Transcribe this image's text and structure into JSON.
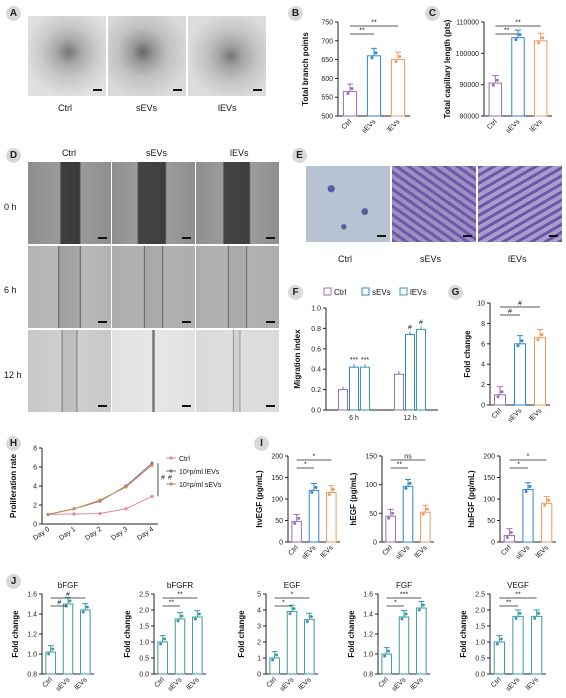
{
  "panels": {
    "A": "A",
    "B": "B",
    "C": "C",
    "D": "D",
    "E": "E",
    "F": "F",
    "G": "G",
    "H": "H",
    "I": "I",
    "J": "J"
  },
  "groups": {
    "ctrl": "Ctrl",
    "sevs": "sEVs",
    "levs": "lEVs"
  },
  "times": {
    "t0": "0 h",
    "t6": "6 h",
    "t12": "12 h"
  },
  "sig": {
    "s1": "*",
    "s2": "**",
    "s3": "***",
    "hash": "#",
    "ns": "ns"
  },
  "colors": {
    "ctrl": "#9b6fb3",
    "sevs": "#2f86d6",
    "levs": "#f09a60",
    "teal": "#3a9aa4",
    "pink": "#e3879a"
  },
  "chart_data": [
    {
      "id": "B",
      "type": "bar",
      "categories": [
        "Ctrl",
        "sEVs",
        "lEVs"
      ],
      "values": [
        565,
        660,
        650
      ],
      "ylabel": "Total branch points",
      "ylim": [
        500,
        750
      ],
      "yticks": [
        500,
        550,
        600,
        650,
        700,
        750
      ]
    },
    {
      "id": "C",
      "type": "bar",
      "categories": [
        "Ctrl",
        "sEVs",
        "lEVs"
      ],
      "values": [
        90500,
        105000,
        104000
      ],
      "ylabel": "Total capillary length (pts)",
      "ylim": [
        80000,
        110000
      ],
      "yticks": [
        80000,
        90000,
        100000,
        110000
      ]
    },
    {
      "id": "F",
      "type": "bar",
      "categories": [
        "6 h",
        "12 h"
      ],
      "series": [
        {
          "name": "Ctrl",
          "values": [
            0.2,
            0.35
          ]
        },
        {
          "name": "sEVs",
          "values": [
            0.42,
            0.74
          ]
        },
        {
          "name": "lEVs",
          "values": [
            0.42,
            0.79
          ]
        }
      ],
      "ylabel": "Migration index",
      "ylim": [
        0,
        1.0
      ],
      "yticks": [
        0,
        0.2,
        0.4,
        0.6,
        0.8,
        1.0
      ]
    },
    {
      "id": "G",
      "type": "bar",
      "categories": [
        "Ctrl",
        "sEVs",
        "lEVs"
      ],
      "values": [
        1.0,
        6.0,
        6.6
      ],
      "ylabel": "Fold change",
      "ylim": [
        0,
        10
      ],
      "yticks": [
        0,
        2,
        4,
        6,
        8,
        10
      ]
    },
    {
      "id": "H",
      "type": "line",
      "categories": [
        "Day 0",
        "Day 1",
        "Day 2",
        "Day 3",
        "Day 4"
      ],
      "series": [
        {
          "name": "Ctrl",
          "values": [
            1.0,
            1.05,
            1.1,
            1.6,
            2.9
          ]
        },
        {
          "name": "10⁸p/ml lEVs",
          "values": [
            1.0,
            1.6,
            2.4,
            4.0,
            6.4
          ]
        },
        {
          "name": "10⁸p/ml sEVs",
          "values": [
            1.0,
            1.6,
            2.5,
            3.9,
            6.2
          ]
        }
      ],
      "ylabel": "Proliferation rate",
      "ylim": [
        0,
        8
      ],
      "yticks": [
        0,
        2,
        4,
        6,
        8
      ]
    },
    {
      "id": "I1",
      "type": "bar",
      "categories": [
        "Ctrl",
        "sEVs",
        "lEVs"
      ],
      "values": [
        48,
        120,
        115
      ],
      "ylabel": "hvEGF (pg/mL)",
      "ylim": [
        0,
        200
      ],
      "yticks": [
        0,
        50,
        100,
        150,
        200
      ]
    },
    {
      "id": "I2",
      "type": "bar",
      "categories": [
        "Ctrl",
        "sEVs",
        "lEVs"
      ],
      "values": [
        45,
        97,
        52
      ],
      "ylabel": "hEGF (pg/mL)",
      "ylim": [
        0,
        150
      ],
      "yticks": [
        0,
        50,
        100,
        150
      ]
    },
    {
      "id": "I3",
      "type": "bar",
      "categories": [
        "Ctrl",
        "sEVs",
        "lEVs"
      ],
      "values": [
        15,
        122,
        90
      ],
      "ylabel": "hbFGF (pg/mL)",
      "ylim": [
        0,
        200
      ],
      "yticks": [
        0,
        50,
        100,
        150,
        200
      ]
    },
    {
      "id": "J1",
      "type": "bar",
      "title": "bFGF",
      "categories": [
        "Ctrl",
        "sEVs",
        "lEVs"
      ],
      "values": [
        1.02,
        1.5,
        1.44
      ],
      "ylabel": "Fold change",
      "ylim": [
        0.8,
        1.6
      ],
      "yticks": [
        0.8,
        1.0,
        1.2,
        1.4,
        1.6
      ]
    },
    {
      "id": "J2",
      "type": "bar",
      "title": "bFGFR",
      "categories": [
        "Ctrl",
        "sEVs",
        "lEVs"
      ],
      "values": [
        1.0,
        1.72,
        1.78
      ],
      "ylabel": "Fold change",
      "ylim": [
        0,
        2.5
      ],
      "yticks": [
        0,
        0.5,
        1.0,
        1.5,
        2.0,
        2.5
      ]
    },
    {
      "id": "J3",
      "type": "bar",
      "title": "EGF",
      "categories": [
        "Ctrl",
        "sEVs",
        "lEVs"
      ],
      "values": [
        1.0,
        3.9,
        3.4
      ],
      "ylabel": "Fold change",
      "ylim": [
        0,
        5
      ],
      "yticks": [
        0,
        1,
        2,
        3,
        4,
        5
      ]
    },
    {
      "id": "J4",
      "type": "bar",
      "title": "FGF",
      "categories": [
        "Ctrl",
        "sEVs",
        "lEVs"
      ],
      "values": [
        1.0,
        1.37,
        1.46
      ],
      "ylabel": "Fold change",
      "ylim": [
        0.8,
        1.6
      ],
      "yticks": [
        0.8,
        1.0,
        1.2,
        1.4,
        1.6
      ]
    },
    {
      "id": "J5",
      "type": "bar",
      "title": "VEGF",
      "categories": [
        "Ctrl",
        "sEVs",
        "lEVs"
      ],
      "values": [
        1.0,
        1.8,
        1.8
      ],
      "ylabel": "Fold change",
      "ylim": [
        0,
        2.5
      ],
      "yticks": [
        0,
        0.5,
        1.0,
        1.5,
        2.0,
        2.5
      ]
    }
  ]
}
